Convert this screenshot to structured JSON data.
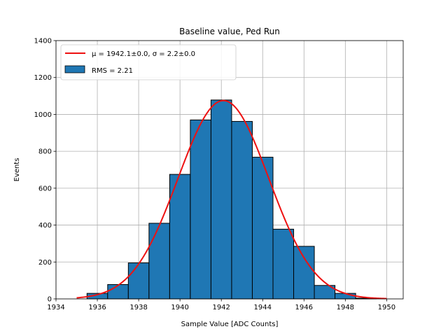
{
  "chart_data": {
    "type": "bar",
    "title": "Baseline value, Ped Run",
    "xlabel": "Sample Value [ADC Counts]",
    "ylabel": "Events",
    "xlim": [
      1934,
      1950.8
    ],
    "ylim": [
      0,
      1400
    ],
    "xticks": [
      1934,
      1936,
      1938,
      1940,
      1942,
      1944,
      1946,
      1948,
      1950
    ],
    "yticks": [
      0,
      200,
      400,
      600,
      800,
      1000,
      1200,
      1400
    ],
    "grid": true,
    "legend_placement": "upper-left",
    "bin_width": 1.0,
    "bins": [
      {
        "left": 1935.5,
        "value": 30
      },
      {
        "left": 1936.5,
        "value": 78
      },
      {
        "left": 1937.5,
        "value": 195
      },
      {
        "left": 1938.5,
        "value": 410
      },
      {
        "left": 1939.5,
        "value": 675
      },
      {
        "left": 1940.5,
        "value": 970
      },
      {
        "left": 1941.5,
        "value": 1078
      },
      {
        "left": 1942.5,
        "value": 962
      },
      {
        "left": 1943.5,
        "value": 768
      },
      {
        "left": 1944.5,
        "value": 378
      },
      {
        "left": 1945.5,
        "value": 285
      },
      {
        "left": 1946.5,
        "value": 73
      },
      {
        "left": 1947.5,
        "value": 30
      },
      {
        "left": 1948.5,
        "value": 4
      }
    ],
    "fit": {
      "mu": 1942.1,
      "sigma": 2.2,
      "amplitude": 1075,
      "x_range": [
        1935,
        1950
      ]
    },
    "series": [
      {
        "name": "μ = 1942.1±0.0, σ = 2.2±0.0",
        "kind": "fit-line",
        "color": "#ee1111"
      },
      {
        "name": "RMS = 2.21",
        "kind": "histogram",
        "color": "#1f77b4"
      }
    ]
  }
}
